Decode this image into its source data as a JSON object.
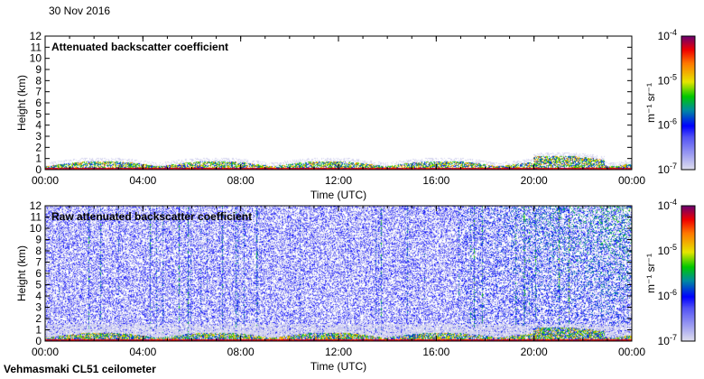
{
  "date": "30 Nov 2016",
  "footer": "Vehmasmaki CL51 ceilometer",
  "chart_data": [
    {
      "type": "heatmap",
      "title": "Attenuated backscatter coefficient",
      "xlabel": "Time (UTC)",
      "ylabel": "Height (km)",
      "xticks": [
        "00:00",
        "04:00",
        "08:00",
        "12:00",
        "16:00",
        "20:00",
        "00:00"
      ],
      "yticks": [
        "0",
        "1",
        "2",
        "3",
        "4",
        "5",
        "6",
        "7",
        "8",
        "9",
        "10",
        "11",
        "12"
      ],
      "ylim": [
        0,
        12
      ],
      "colorbar": {
        "label": "m-1 sr-1",
        "ticks": [
          "10-7",
          "10-6",
          "10-5",
          "10-4"
        ],
        "range": [
          1e-07,
          0.0001
        ],
        "scale": "log"
      }
    },
    {
      "type": "heatmap",
      "title": "Raw attenuated backscatter coefficient",
      "xlabel": "Time (UTC)",
      "ylabel": "Height (km)",
      "xticks": [
        "00:00",
        "04:00",
        "08:00",
        "12:00",
        "16:00",
        "20:00",
        "00:00"
      ],
      "yticks": [
        "0",
        "1",
        "2",
        "3",
        "4",
        "5",
        "6",
        "7",
        "8",
        "9",
        "10",
        "11",
        "12"
      ],
      "ylim": [
        0,
        12
      ],
      "colorbar": {
        "label": "m-1 sr-1",
        "ticks": [
          "10-7",
          "10-6",
          "10-5",
          "10-4"
        ],
        "range": [
          1e-07,
          0.0001
        ],
        "scale": "log"
      }
    }
  ]
}
